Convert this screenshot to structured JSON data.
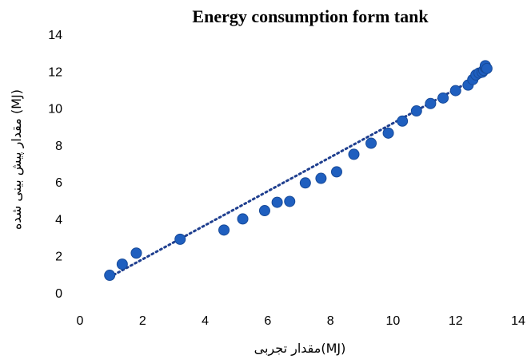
{
  "chart_data": {
    "type": "scatter",
    "title": "Energy consumption form tank",
    "xlabel": "مقدار تجربی(MJ)",
    "ylabel": "مقدار پیش بینی شده (MJ)",
    "xlim": [
      0,
      14
    ],
    "ylim": [
      0,
      14
    ],
    "xticks": [
      "0",
      "2",
      "4",
      "6",
      "8",
      "10",
      "12",
      "14"
    ],
    "yticks": [
      "0",
      "2",
      "4",
      "6",
      "8",
      "10",
      "12",
      "14"
    ],
    "grid": false,
    "legend": "none",
    "marker_color": "#1f5fbf",
    "trendline": {
      "style": "dotted",
      "color": "#1f3f8f",
      "x": [
        0.95,
        12.95
      ],
      "y": [
        0.85,
        11.9
      ]
    },
    "series": [
      {
        "x": [
          0.95,
          1.35,
          1.8,
          3.2,
          4.6,
          5.2,
          5.9,
          6.3,
          6.7,
          7.2,
          7.7,
          8.2,
          8.75,
          9.3,
          9.85,
          10.3,
          10.75,
          11.2,
          11.6,
          12.0,
          12.4,
          12.55,
          12.65,
          12.75,
          12.85,
          12.9,
          12.95,
          12.95,
          13.0
        ],
        "y": [
          0.95,
          1.55,
          2.15,
          2.9,
          3.4,
          4.0,
          4.45,
          4.9,
          4.95,
          5.95,
          6.2,
          6.55,
          7.5,
          8.1,
          8.65,
          9.3,
          9.85,
          10.25,
          10.55,
          10.95,
          11.25,
          11.55,
          11.8,
          11.9,
          11.95,
          12.05,
          12.2,
          12.3,
          12.15
        ]
      }
    ]
  }
}
